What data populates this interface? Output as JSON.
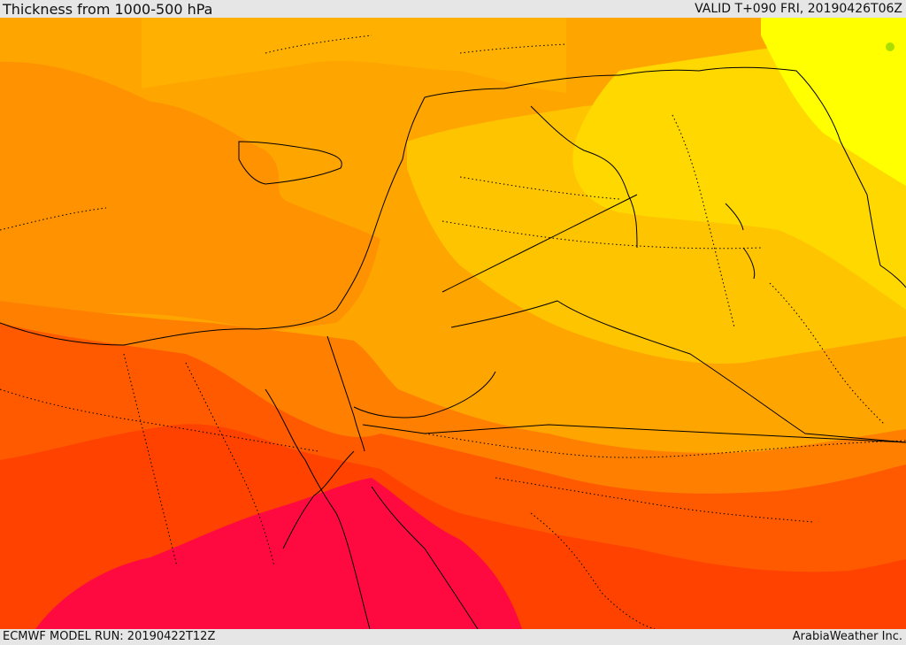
{
  "header": {
    "title": "Thickness from 1000-500 hPa",
    "valid": "VALID T+090 FRI, 20190426T06Z"
  },
  "footer": {
    "model_run": "ECMWF MODEL RUN: 20190422T12Z",
    "credit": "ArabiaWeather Inc."
  },
  "map": {
    "field": "1000-500 hPa thickness",
    "color_bands": [
      "#ffff00",
      "#ffd200",
      "#ffaa00",
      "#ff8800",
      "#ff6600",
      "#ff4400",
      "#ff0040"
    ],
    "coastline_color": "#000000",
    "boundary_style": "dotted"
  }
}
